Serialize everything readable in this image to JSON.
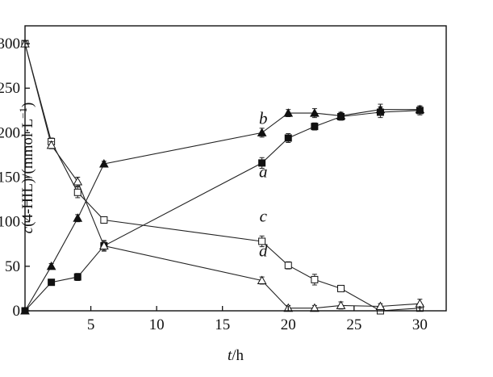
{
  "chart_data": {
    "type": "line",
    "xlabel": {
      "italic": "t",
      "rest": "/h"
    },
    "ylabel": {
      "italic": "c",
      "rest": "(4-HIL)/(mmol·L",
      "sup": "−1",
      "close": ")"
    },
    "xlim": [
      0,
      32
    ],
    "ylim": [
      0,
      320
    ],
    "xticks": [
      5,
      10,
      15,
      20,
      25,
      30
    ],
    "yticks": [
      0,
      50,
      100,
      150,
      200,
      250,
      300
    ],
    "grid": false,
    "series": [
      {
        "name": "a",
        "marker": "filled-square",
        "x": [
          0,
          2,
          4,
          6,
          18,
          20,
          22,
          24,
          27,
          30
        ],
        "y": [
          0,
          32,
          38,
          73,
          166,
          194,
          207,
          218,
          223,
          225
        ],
        "err": [
          0,
          3,
          4,
          6,
          6,
          5,
          4,
          4,
          6,
          5
        ]
      },
      {
        "name": "b",
        "marker": "filled-triangle",
        "x": [
          0,
          2,
          4,
          6,
          18,
          20,
          22,
          24,
          27,
          30
        ],
        "y": [
          0,
          50,
          104,
          165,
          200,
          222,
          222,
          219,
          226,
          226
        ],
        "err": [
          0,
          3,
          4,
          3,
          5,
          4,
          5,
          4,
          6,
          4
        ]
      },
      {
        "name": "c",
        "marker": "open-square",
        "x": [
          0,
          2,
          4,
          6,
          18,
          20,
          22,
          24,
          27,
          30
        ],
        "y": [
          300,
          190,
          133,
          102,
          78,
          51,
          35,
          25,
          0,
          3
        ],
        "err": [
          3,
          4,
          6,
          3,
          6,
          4,
          6,
          3,
          3,
          4
        ]
      },
      {
        "name": "d",
        "marker": "open-triangle",
        "x": [
          0,
          2,
          4,
          6,
          18,
          20,
          22,
          24,
          27,
          30
        ],
        "y": [
          300,
          186,
          145,
          73,
          34,
          3,
          3,
          6,
          5,
          8
        ],
        "err": [
          3,
          4,
          5,
          5,
          4,
          3,
          3,
          4,
          3,
          5
        ]
      }
    ],
    "annotations": [
      {
        "text": "b",
        "x": 18.1,
        "y": 210
      },
      {
        "text": "a",
        "x": 18.1,
        "y": 150
      },
      {
        "text": "c",
        "x": 18.1,
        "y": 100
      },
      {
        "text": "d",
        "x": 18.1,
        "y": 61
      }
    ]
  }
}
